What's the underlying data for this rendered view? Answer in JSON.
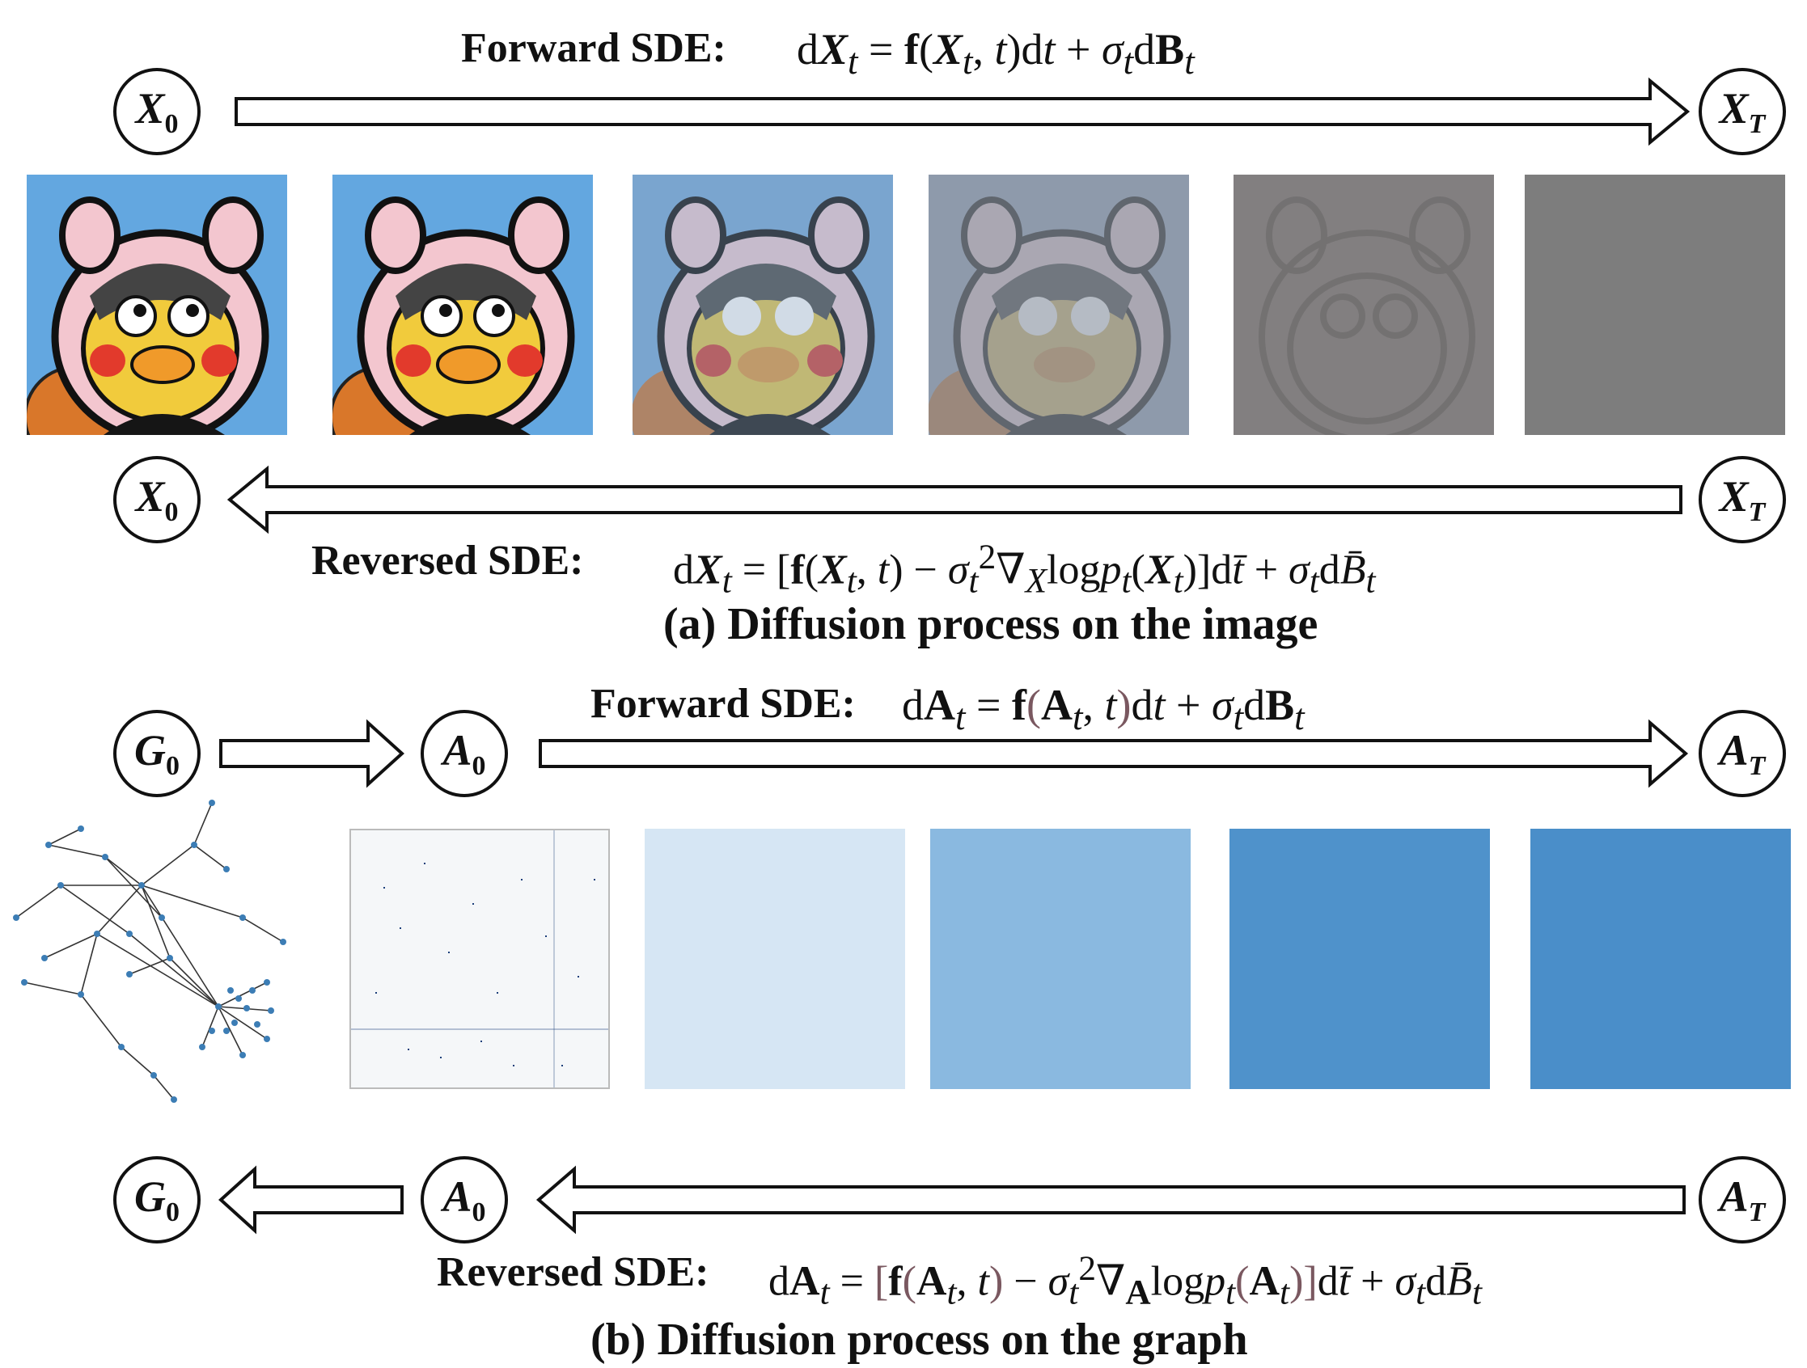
{
  "part_a": {
    "forward_label": "Forward SDE:",
    "forward_eq": "dXₜ = f(Xₜ, t)dt + σₜdBₜ",
    "reversed_label": "Reversed SDE:",
    "reversed_eq": "dXₜ = [f(Xₜ, t) − σₜ²∇ₓlogpₜ(Xₜ)]dt̄ + σₜdB̄ₜ",
    "caption": "(a) Diffusion process on the image",
    "node_start": "X",
    "node_start_sub": "0",
    "node_end": "X",
    "node_end_sub": "T"
  },
  "part_b": {
    "forward_label": "Forward SDE:",
    "forward_eq": "dAₜ = f(Aₜ, t)dt + σₜdBₜ",
    "reversed_label": "Reversed SDE:",
    "reversed_eq": "dAₜ = [f(Aₜ, t) − σₜ²∇_A logpₜ(Aₜ)]dt̄ + σₜdB̄ₜ",
    "caption": "(b) Diffusion process on the graph",
    "node_graph": "G",
    "node_graph_sub": "0",
    "node_adj": "A",
    "node_adj_sub": "0",
    "node_end": "A",
    "node_end_sub": "T"
  },
  "colors": {
    "image_bg": "#63a7e0",
    "noise_gray": "#7d7d7d",
    "matrix_blue": "#3b83c0",
    "graph_node": "#3c7db5",
    "mauve": "#7a5860"
  }
}
